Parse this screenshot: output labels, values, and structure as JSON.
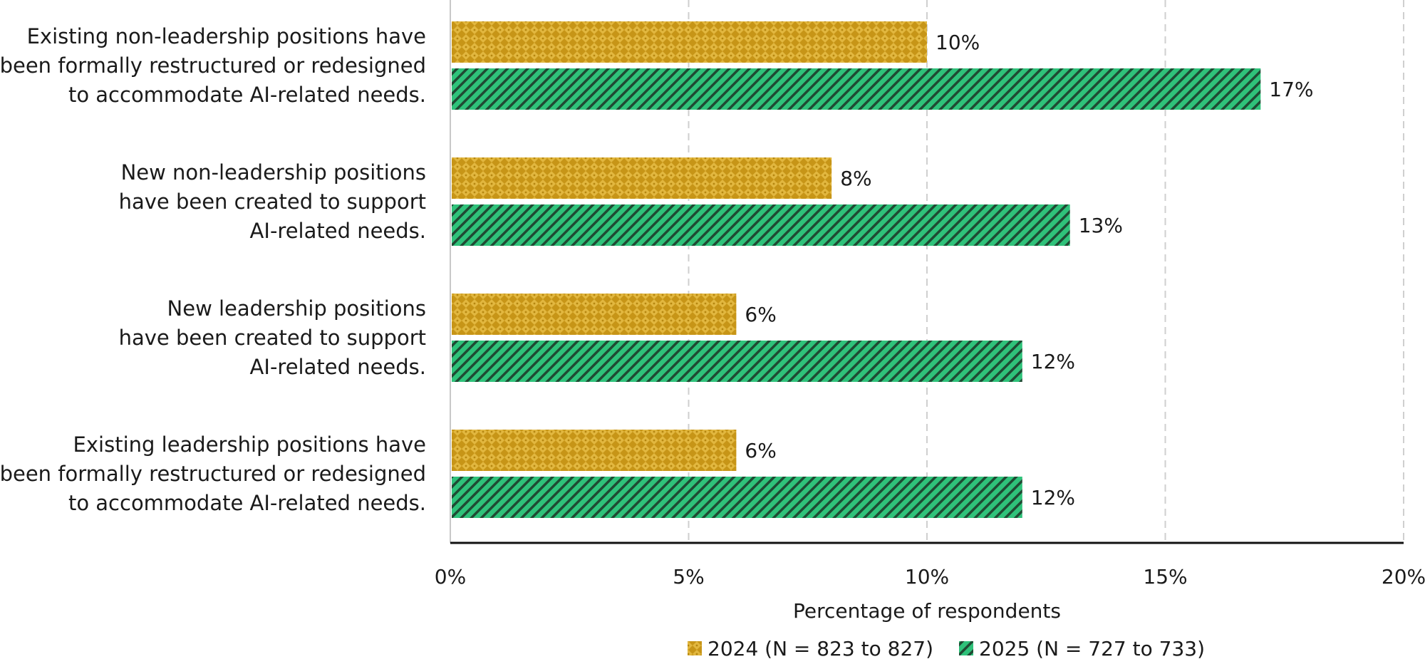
{
  "chart_data": {
    "type": "bar",
    "orientation": "horizontal",
    "categories": [
      "Existing non-leadership positions have been formally restructured or redesigned to accommodate AI-related needs.",
      "New non-leadership positions have been created to support AI-related needs.",
      "New leadership positions have been created to support AI-related needs.",
      "Existing leadership positions have been formally restructured or redesigned to accommodate AI-related needs."
    ],
    "category_lines": [
      [
        "Existing non-leadership positions have",
        "been formally restructured or redesigned",
        "to accommodate AI-related needs."
      ],
      [
        "New non-leadership positions",
        "have been created to support",
        "AI-related needs."
      ],
      [
        "New leadership positions",
        "have been created to support",
        "AI-related needs."
      ],
      [
        "Existing leadership positions have",
        "been formally restructured or redesigned",
        "to accommodate AI-related needs."
      ]
    ],
    "series": [
      {
        "name": "2024 (N = 823 to 827)",
        "values": [
          10,
          8,
          6,
          6
        ],
        "value_labels": [
          "10%",
          "8%",
          "6%",
          "6%"
        ],
        "color": "#D4A72C",
        "pattern": "checker"
      },
      {
        "name": "2025 (N = 727 to 733)",
        "values": [
          17,
          13,
          12,
          12
        ],
        "value_labels": [
          "17%",
          "13%",
          "12%",
          "12%"
        ],
        "color": "#2EB872",
        "pattern": "diagonal"
      }
    ],
    "xlabel": "Percentage of respondents",
    "ylabel": "",
    "xlim": [
      0,
      20
    ],
    "xticks": [
      0,
      5,
      10,
      15,
      20
    ],
    "xtick_labels": [
      "0%",
      "5%",
      "10%",
      "15%",
      "20%"
    ],
    "grid": "vertical dashed",
    "legend": "bottom-center"
  }
}
